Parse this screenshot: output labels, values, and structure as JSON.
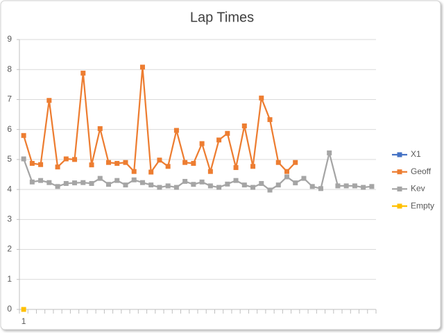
{
  "chart_data": {
    "type": "line",
    "title": "Lap Times",
    "categories": [
      "1",
      null,
      null,
      null,
      null,
      null,
      null,
      null,
      null,
      null,
      null,
      null,
      null,
      null,
      null,
      null,
      null,
      null,
      null,
      null,
      null,
      null,
      null,
      null,
      null,
      null,
      null,
      null,
      null,
      null,
      null,
      null,
      null,
      null,
      null,
      null,
      null,
      null,
      null,
      null,
      null,
      null
    ],
    "series": [
      {
        "name": "X1",
        "color": "#4472c4",
        "values": [
          null,
          null,
          null,
          null,
          null,
          null,
          null,
          null,
          null,
          null,
          null,
          null,
          null,
          null,
          null,
          null,
          null,
          null,
          null,
          null,
          null,
          null,
          null,
          null,
          null,
          null,
          null,
          null,
          null,
          null,
          null,
          null,
          null,
          null,
          null,
          null,
          null,
          null,
          null,
          null,
          null,
          null
        ]
      },
      {
        "name": "Geoff",
        "color": "#ed7d31",
        "values": [
          5.8,
          4.87,
          4.83,
          6.97,
          4.75,
          5.02,
          5.0,
          7.88,
          4.82,
          6.03,
          4.9,
          4.87,
          4.9,
          4.6,
          8.08,
          4.58,
          4.98,
          4.77,
          5.97,
          4.9,
          4.87,
          5.53,
          4.6,
          5.65,
          5.87,
          4.73,
          6.12,
          4.77,
          7.05,
          6.33,
          4.9,
          4.6,
          4.9,
          null,
          null,
          null,
          null,
          null,
          null,
          null,
          null,
          null
        ]
      },
      {
        "name": "Kev",
        "color": "#a5a5a5",
        "values": [
          5.02,
          4.25,
          4.3,
          4.23,
          4.1,
          4.2,
          4.22,
          4.23,
          4.2,
          4.37,
          4.17,
          4.3,
          4.15,
          4.32,
          4.23,
          4.15,
          4.07,
          4.12,
          4.07,
          4.27,
          4.17,
          4.25,
          4.12,
          4.07,
          4.18,
          4.3,
          4.15,
          4.07,
          4.2,
          3.98,
          4.15,
          4.42,
          4.22,
          4.37,
          4.1,
          4.03,
          5.22,
          4.12,
          4.12,
          4.12,
          4.07,
          4.1
        ]
      },
      {
        "name": "Empty",
        "color": "#ffc000",
        "values": [
          0,
          null,
          null,
          null,
          null,
          null,
          null,
          null,
          null,
          null,
          null,
          null,
          null,
          null,
          null,
          null,
          null,
          null,
          null,
          null,
          null,
          null,
          null,
          null,
          null,
          null,
          null,
          null,
          null,
          null,
          null,
          null,
          null,
          null,
          null,
          null,
          null,
          null,
          null,
          null,
          null,
          null
        ]
      }
    ],
    "ylim": [
      0,
      9
    ],
    "yticks": [
      0,
      1,
      2,
      3,
      4,
      5,
      6,
      7,
      8,
      9
    ],
    "grid": true,
    "legend": "right"
  }
}
